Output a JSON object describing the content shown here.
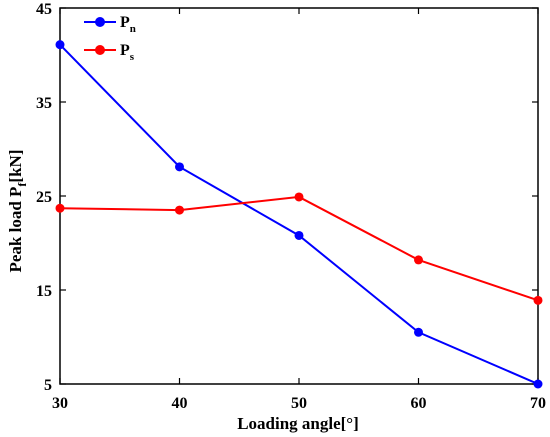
{
  "chart_data": {
    "type": "line",
    "x": [
      30,
      40,
      50,
      60,
      70
    ],
    "series": [
      {
        "name": "P",
        "subscript": "n",
        "color": "#0000ff",
        "values": [
          41.1,
          28.1,
          20.8,
          10.5,
          5.0
        ]
      },
      {
        "name": "P",
        "subscript": "s",
        "color": "#ff0000",
        "values": [
          23.7,
          23.5,
          24.9,
          18.2,
          13.9
        ]
      }
    ],
    "xlabel": "Loading angle[°]",
    "ylabel": {
      "main": "Peak load P",
      "sub": "f",
      "unit": "[kN]"
    },
    "xticks": [
      "30",
      "40",
      "50",
      "60",
      "70"
    ],
    "yticks": [
      "5",
      "15",
      "25",
      "35",
      "45"
    ],
    "xlim": [
      30,
      70
    ],
    "ylim": [
      5,
      45
    ],
    "grid": false,
    "legend_position": "top-left"
  }
}
